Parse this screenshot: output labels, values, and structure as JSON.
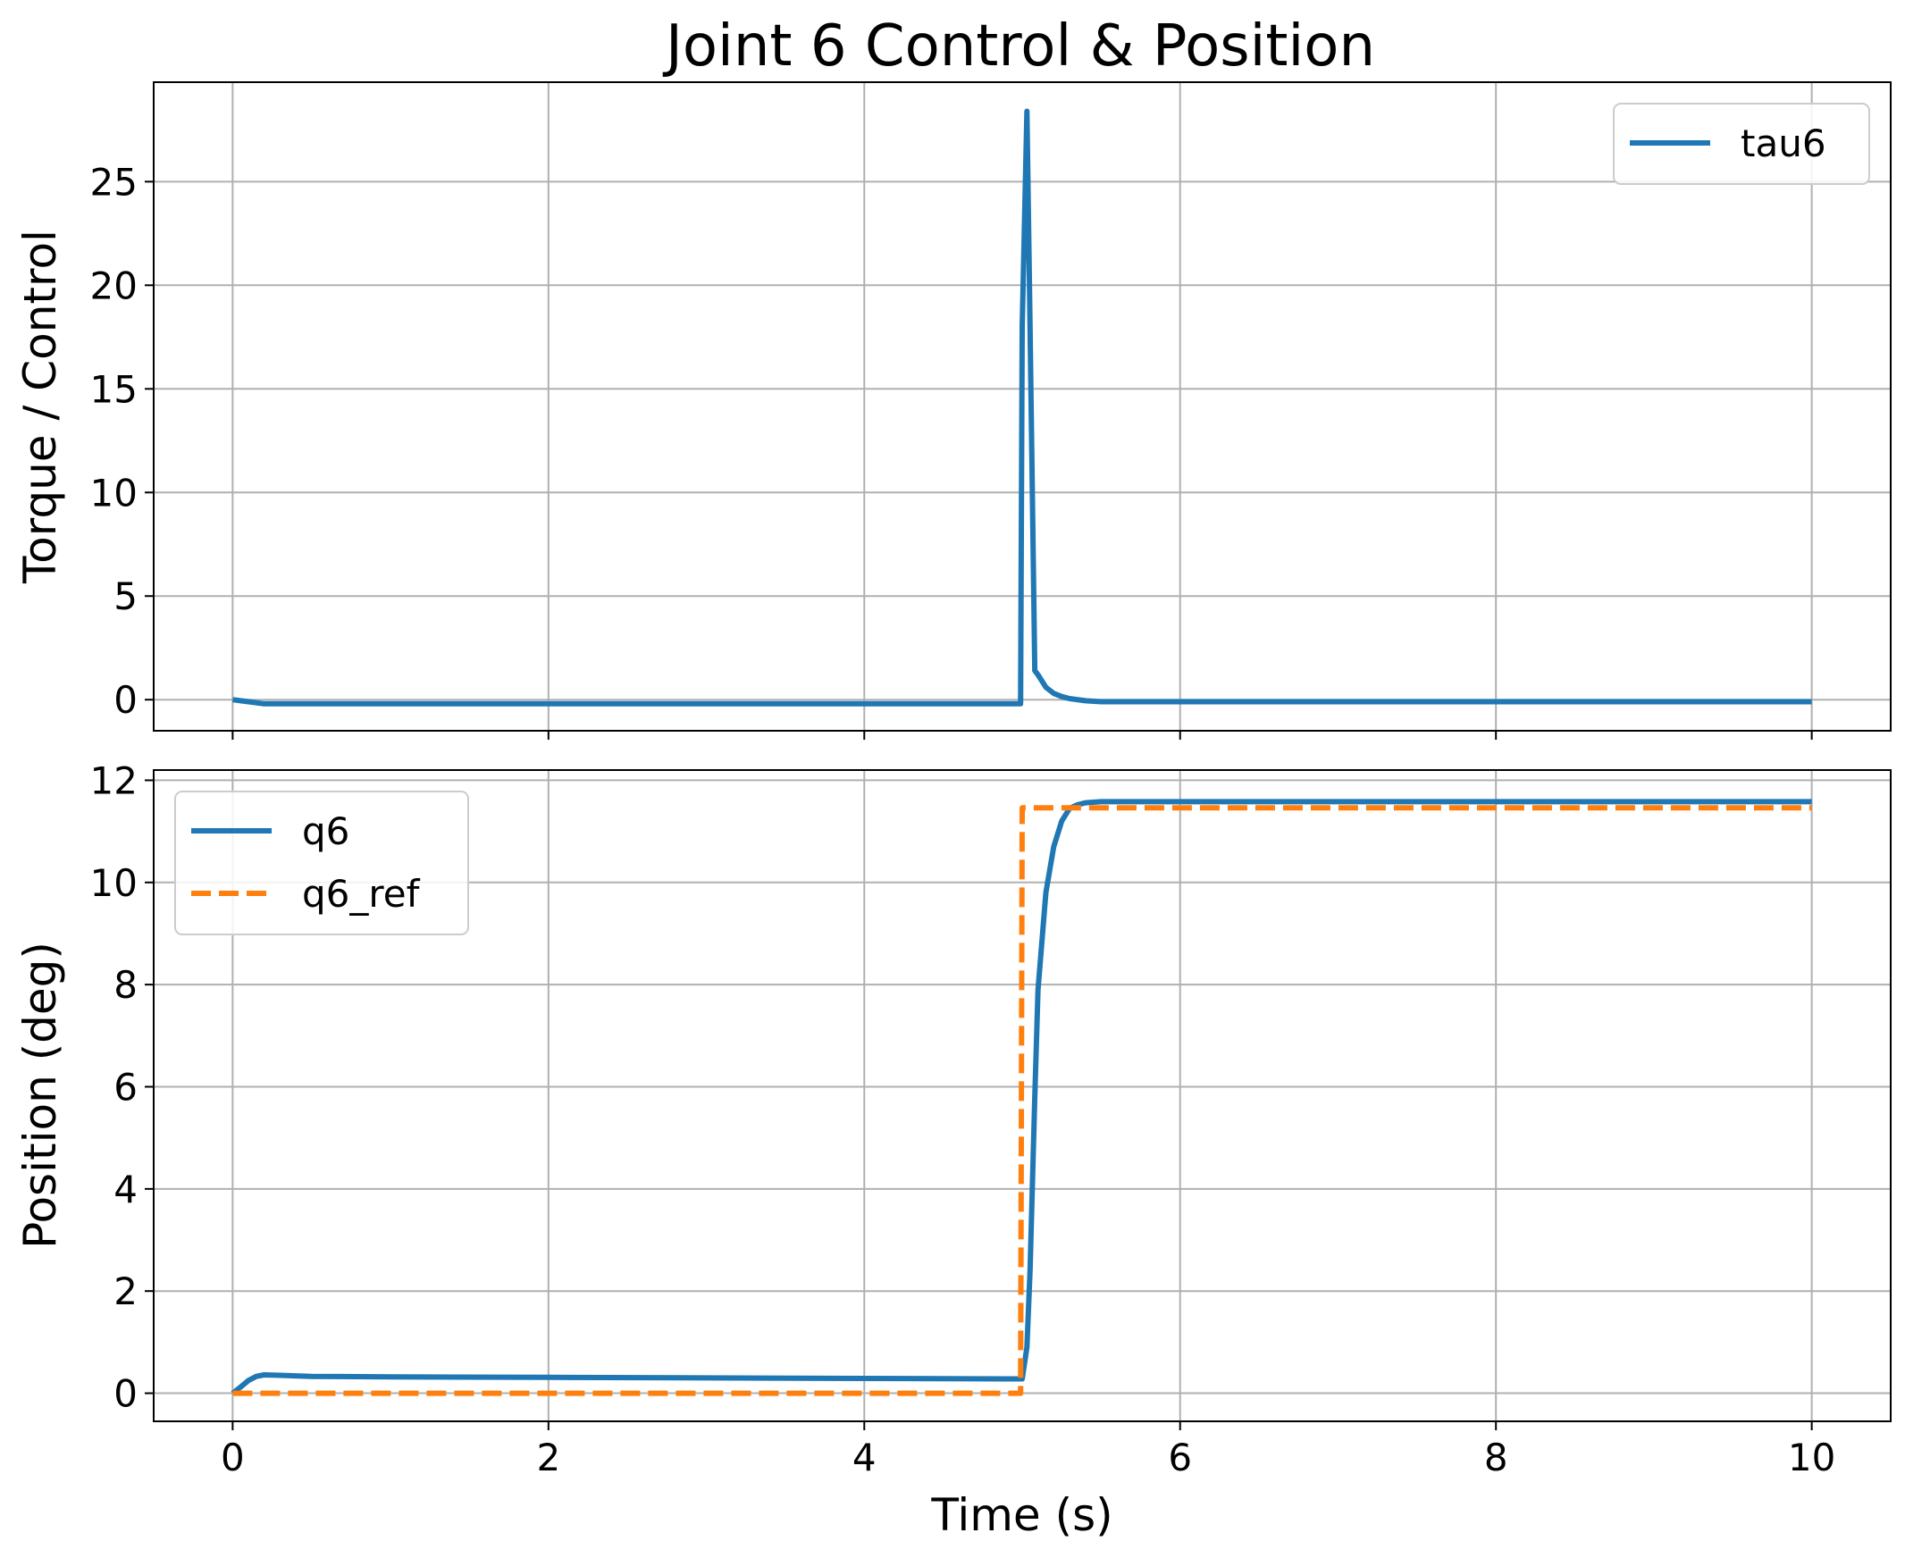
{
  "title": "Joint 6 Control & Position",
  "colors": {
    "series_blue": "#1f77b4",
    "series_orange": "#ff7f0e",
    "grid": "#b0b0b0",
    "legend_border": "#cccccc"
  },
  "chart_data": [
    {
      "type": "line",
      "ylabel": "Torque / Control",
      "xlabel": "",
      "xlim": [
        -0.5,
        10.5
      ],
      "ylim": [
        -1.5,
        29.8
      ],
      "xticks": [
        0,
        2,
        4,
        6,
        8,
        10
      ],
      "yticks": [
        0,
        5,
        10,
        15,
        20,
        25
      ],
      "show_x_tick_labels": false,
      "grid": true,
      "legend_placement": "upper right",
      "series": [
        {
          "name": "tau6",
          "color": "#1f77b4",
          "style": "solid",
          "x": [
            0,
            0.05,
            0.1,
            0.15,
            0.2,
            0.3,
            0.5,
            1,
            2,
            3,
            4,
            4.9,
            4.99,
            5.0,
            5.03,
            5.05,
            5.08,
            5.1,
            5.15,
            5.2,
            5.25,
            5.3,
            5.4,
            5.5,
            6,
            7,
            8,
            9,
            10
          ],
          "y": [
            0,
            -0.05,
            -0.1,
            -0.15,
            -0.2,
            -0.2,
            -0.2,
            -0.2,
            -0.2,
            -0.2,
            -0.2,
            -0.2,
            -0.2,
            18.0,
            28.4,
            18.0,
            1.4,
            1.2,
            0.6,
            0.3,
            0.15,
            0.05,
            -0.05,
            -0.1,
            -0.1,
            -0.1,
            -0.1,
            -0.1,
            -0.1
          ]
        }
      ]
    },
    {
      "type": "line",
      "ylabel": "Position (deg)",
      "xlabel": "Time (s)",
      "xlim": [
        -0.5,
        10.5
      ],
      "ylim": [
        -0.55,
        12.2
      ],
      "xticks": [
        0,
        2,
        4,
        6,
        8,
        10
      ],
      "yticks": [
        0,
        2,
        4,
        6,
        8,
        10,
        12
      ],
      "show_x_tick_labels": true,
      "grid": true,
      "legend_placement": "upper left",
      "series": [
        {
          "name": "q6",
          "color": "#1f77b4",
          "style": "solid",
          "x": [
            0,
            0.05,
            0.1,
            0.15,
            0.2,
            0.3,
            0.5,
            1,
            2,
            3,
            4,
            4.9,
            5.0,
            5.03,
            5.05,
            5.08,
            5.1,
            5.15,
            5.2,
            5.25,
            5.3,
            5.35,
            5.4,
            5.5,
            6,
            7,
            8,
            9,
            10
          ],
          "y": [
            0,
            0.12,
            0.25,
            0.33,
            0.36,
            0.35,
            0.33,
            0.32,
            0.31,
            0.3,
            0.29,
            0.28,
            0.28,
            0.9,
            2.4,
            5.8,
            7.9,
            9.8,
            10.7,
            11.2,
            11.45,
            11.52,
            11.56,
            11.58,
            11.58,
            11.58,
            11.58,
            11.58,
            11.58
          ]
        },
        {
          "name": "q6_ref",
          "color": "#ff7f0e",
          "style": "dashed",
          "x": [
            0,
            4.99,
            5.0,
            10
          ],
          "y": [
            0,
            0,
            11.46,
            11.46
          ]
        }
      ]
    }
  ]
}
